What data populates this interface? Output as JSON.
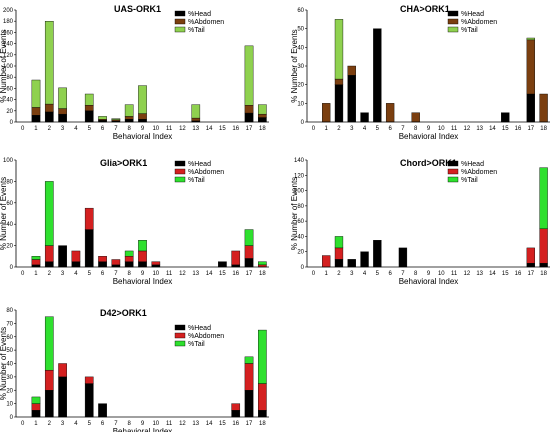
{
  "colors": {
    "Head": "#000000",
    "Abdomen": "#7b3f10",
    "Tail": "#8fd14f",
    "axis": "#000000",
    "alt_Head": "#000000",
    "alt_Abdomen": "#d42020",
    "alt_Tail": "#2ee02e"
  },
  "chart_data": [
    {
      "type": "bar",
      "title": "UAS-ORK1",
      "xlabel": "Behavioral Index",
      "ylabel": "% Number of Events",
      "ylim": [
        0,
        200
      ],
      "yticks": [
        0,
        20,
        40,
        60,
        80,
        100,
        120,
        140,
        160,
        180,
        200
      ],
      "categories": [
        "0",
        "1",
        "2",
        "3",
        "4",
        "5",
        "6",
        "7",
        "8",
        "9",
        "10",
        "11",
        "12",
        "13",
        "14",
        "15",
        "16",
        "17",
        "18"
      ],
      "legend": [
        "%Head",
        "%Abdomen",
        "%Tail"
      ],
      "palette": "olive",
      "series": [
        {
          "name": "%Head",
          "values": [
            0,
            12,
            18,
            14,
            0,
            20,
            3,
            2,
            5,
            5,
            0,
            0,
            0,
            2,
            0,
            0,
            0,
            16,
            8
          ]
        },
        {
          "name": "%Abdomen",
          "values": [
            0,
            14,
            14,
            10,
            0,
            10,
            2,
            2,
            5,
            10,
            0,
            0,
            0,
            5,
            0,
            0,
            0,
            14,
            6
          ]
        },
        {
          "name": "%Tail",
          "values": [
            0,
            49,
            148,
            37,
            0,
            20,
            5,
            2,
            21,
            50,
            0,
            0,
            0,
            24,
            0,
            0,
            0,
            106,
            17
          ]
        }
      ]
    },
    {
      "type": "bar",
      "title": "CHA>ORK1",
      "xlabel": "Behavioral Index",
      "ylabel": "% Number of Events",
      "ylim": [
        0,
        60
      ],
      "yticks": [
        0,
        10,
        20,
        30,
        40,
        50,
        60
      ],
      "categories": [
        "0",
        "1",
        "2",
        "3",
        "4",
        "5",
        "6",
        "7",
        "8",
        "9",
        "10",
        "11",
        "12",
        "13",
        "14",
        "15",
        "16",
        "17",
        "18"
      ],
      "legend": [
        "%Head",
        "%Abdomen",
        "%Tail"
      ],
      "palette": "olive",
      "series": [
        {
          "name": "%Head",
          "values": [
            0,
            0,
            20,
            25,
            5,
            50,
            0,
            0,
            0,
            0,
            0,
            0,
            0,
            0,
            0,
            5,
            0,
            15,
            0
          ]
        },
        {
          "name": "%Abdomen",
          "values": [
            0,
            10,
            3,
            5,
            0,
            0,
            10,
            0,
            5,
            0,
            0,
            0,
            0,
            0,
            0,
            0,
            0,
            29,
            15
          ]
        },
        {
          "name": "%Tail",
          "values": [
            0,
            0,
            32,
            0,
            0,
            0,
            0,
            0,
            0,
            0,
            0,
            0,
            0,
            0,
            0,
            0,
            0,
            1,
            0
          ]
        }
      ]
    },
    {
      "type": "bar",
      "title": "Glia>ORK1",
      "xlabel": "Behavioral Index",
      "ylabel": "% Number of Events",
      "ylim": [
        0,
        100
      ],
      "yticks": [
        0,
        20,
        40,
        60,
        80,
        100
      ],
      "categories": [
        "0",
        "1",
        "2",
        "3",
        "4",
        "5",
        "6",
        "7",
        "8",
        "9",
        "10",
        "11",
        "12",
        "13",
        "14",
        "15",
        "16",
        "17",
        "18"
      ],
      "legend": [
        "%Head",
        "%Abdomen",
        "%Tail"
      ],
      "palette": "bright",
      "series": [
        {
          "name": "%Head",
          "values": [
            0,
            2,
            5,
            20,
            5,
            35,
            5,
            2,
            5,
            5,
            2,
            0,
            0,
            0,
            0,
            5,
            2,
            8,
            0
          ]
        },
        {
          "name": "%Abdomen",
          "values": [
            0,
            5,
            15,
            0,
            10,
            20,
            5,
            5,
            5,
            10,
            3,
            0,
            0,
            0,
            0,
            0,
            13,
            12,
            2
          ]
        },
        {
          "name": "%Tail",
          "values": [
            0,
            3,
            60,
            0,
            0,
            0,
            0,
            0,
            5,
            10,
            0,
            0,
            0,
            0,
            0,
            0,
            0,
            15,
            3
          ]
        }
      ]
    },
    {
      "type": "bar",
      "title": "Chord>ORK1",
      "xlabel": "Behavioral Index",
      "ylabel": "% Number of Events",
      "ylim": [
        0,
        140
      ],
      "yticks": [
        0,
        20,
        40,
        60,
        80,
        100,
        120,
        140
      ],
      "categories": [
        "0",
        "1",
        "2",
        "3",
        "4",
        "5",
        "6",
        "7",
        "8",
        "9",
        "10",
        "11",
        "12",
        "13",
        "14",
        "15",
        "16",
        "17",
        "18"
      ],
      "legend": [
        "%Head",
        "%Abdomen",
        "%Tail"
      ],
      "palette": "bright",
      "series": [
        {
          "name": "%Head",
          "values": [
            0,
            0,
            10,
            10,
            20,
            35,
            0,
            25,
            0,
            0,
            0,
            0,
            0,
            0,
            0,
            0,
            0,
            5,
            5
          ]
        },
        {
          "name": "%Abdomen",
          "values": [
            0,
            15,
            15,
            0,
            0,
            0,
            0,
            0,
            0,
            0,
            0,
            0,
            0,
            0,
            0,
            0,
            0,
            20,
            45
          ]
        },
        {
          "name": "%Tail",
          "values": [
            0,
            0,
            15,
            0,
            0,
            0,
            0,
            0,
            0,
            0,
            0,
            0,
            0,
            0,
            0,
            0,
            0,
            0,
            80
          ]
        }
      ]
    },
    {
      "type": "bar",
      "title": "D42>ORK1",
      "xlabel": "Behavioral Index",
      "ylabel": "% Number of Events",
      "ylim": [
        0,
        80
      ],
      "yticks": [
        0,
        10,
        20,
        30,
        40,
        50,
        60,
        70,
        80
      ],
      "categories": [
        "0",
        "1",
        "2",
        "3",
        "4",
        "5",
        "6",
        "7",
        "8",
        "9",
        "10",
        "11",
        "12",
        "13",
        "14",
        "15",
        "16",
        "17",
        "18"
      ],
      "legend": [
        "%Head",
        "%Abdomen",
        "%Tail"
      ],
      "palette": "bright",
      "series": [
        {
          "name": "%Head",
          "values": [
            0,
            5,
            20,
            30,
            0,
            25,
            10,
            0,
            0,
            0,
            0,
            0,
            0,
            0,
            0,
            0,
            5,
            20,
            5
          ]
        },
        {
          "name": "%Abdomen",
          "values": [
            0,
            5,
            15,
            10,
            0,
            5,
            0,
            0,
            0,
            0,
            0,
            0,
            0,
            0,
            0,
            0,
            5,
            20,
            20
          ]
        },
        {
          "name": "%Tail",
          "values": [
            0,
            5,
            40,
            0,
            0,
            0,
            0,
            0,
            0,
            0,
            0,
            0,
            0,
            0,
            0,
            0,
            0,
            5,
            40
          ]
        }
      ]
    }
  ]
}
